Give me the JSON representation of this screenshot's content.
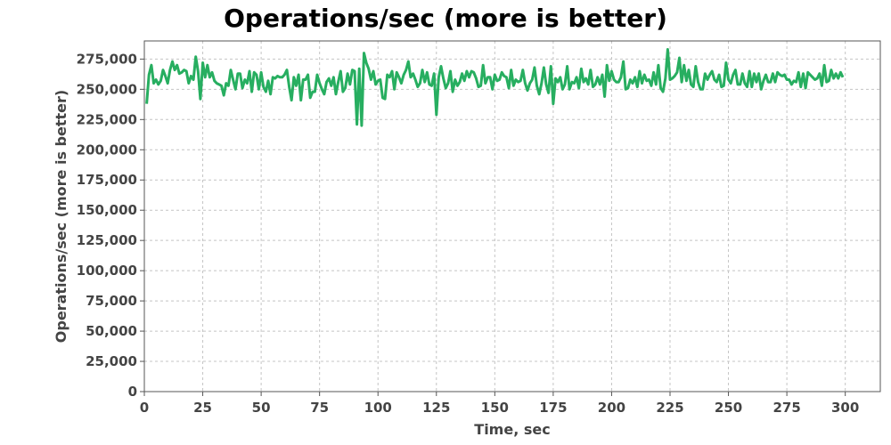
{
  "chart_data": {
    "type": "line",
    "title": "Operations/sec (more is better)",
    "xlabel": "Time, sec",
    "ylabel": "Operations/sec (more is better)",
    "xlim": [
      0,
      315
    ],
    "ylim": [
      0,
      290000
    ],
    "x_ticks": [
      0,
      25,
      50,
      75,
      100,
      125,
      150,
      175,
      200,
      225,
      250,
      275,
      300
    ],
    "y_ticks": [
      0,
      25000,
      50000,
      75000,
      100000,
      125000,
      150000,
      175000,
      200000,
      225000,
      250000,
      275000
    ],
    "y_tick_labels": [
      "0",
      "25,000",
      "50,000",
      "75,000",
      "100,000",
      "125,000",
      "150,000",
      "175,000",
      "200,000",
      "225,000",
      "250,000",
      "275,000"
    ],
    "grid": true,
    "series": [
      {
        "color": "#27ae60",
        "x": [
          1,
          2,
          3,
          4,
          5,
          6,
          7,
          8,
          9,
          10,
          11,
          12,
          13,
          14,
          15,
          16,
          17,
          18,
          19,
          20,
          21,
          22,
          23,
          24,
          25,
          26,
          27,
          28,
          29,
          30,
          31,
          32,
          33,
          34,
          35,
          36,
          37,
          38,
          39,
          40,
          41,
          42,
          43,
          44,
          45,
          46,
          47,
          48,
          49,
          50,
          51,
          52,
          53,
          54,
          55,
          56,
          57,
          58,
          59,
          60,
          61,
          62,
          63,
          64,
          65,
          66,
          67,
          68,
          69,
          70,
          71,
          72,
          73,
          74,
          75,
          76,
          77,
          78,
          79,
          80,
          81,
          82,
          83,
          84,
          85,
          86,
          87,
          88,
          89,
          90,
          91,
          92,
          93,
          94,
          95,
          96,
          97,
          98,
          99,
          100,
          101,
          102,
          103,
          104,
          105,
          106,
          107,
          108,
          109,
          110,
          111,
          112,
          113,
          114,
          115,
          116,
          117,
          118,
          119,
          120,
          121,
          122,
          123,
          124,
          125,
          126,
          127,
          128,
          129,
          130,
          131,
          132,
          133,
          134,
          135,
          136,
          137,
          138,
          139,
          140,
          141,
          142,
          143,
          144,
          145,
          146,
          147,
          148,
          149,
          150,
          151,
          152,
          153,
          154,
          155,
          156,
          157,
          158,
          159,
          160,
          161,
          162,
          163,
          164,
          165,
          166,
          167,
          168,
          169,
          170,
          171,
          172,
          173,
          174,
          175,
          176,
          177,
          178,
          179,
          180,
          181,
          182,
          183,
          184,
          185,
          186,
          187,
          188,
          189,
          190,
          191,
          192,
          193,
          194,
          195,
          196,
          197,
          198,
          199,
          200,
          201,
          202,
          203,
          204,
          205,
          206,
          207,
          208,
          209,
          210,
          211,
          212,
          213,
          214,
          215,
          216,
          217,
          218,
          219,
          220,
          221,
          222,
          223,
          224,
          225,
          226,
          227,
          228,
          229,
          230,
          231,
          232,
          233,
          234,
          235,
          236,
          237,
          238,
          239,
          240,
          241,
          242,
          243,
          244,
          245,
          246,
          247,
          248,
          249,
          250,
          251,
          252,
          253,
          254,
          255,
          256,
          257,
          258,
          259,
          260,
          261,
          262,
          263,
          264,
          265,
          266,
          267,
          268,
          269,
          270,
          271,
          272,
          273,
          274,
          275,
          276,
          277,
          278,
          279,
          280,
          281,
          282,
          283,
          284,
          285,
          286,
          287,
          288,
          289,
          290,
          291,
          292,
          293,
          294,
          295,
          296,
          297,
          298,
          299
        ],
        "y": [
          238000,
          262000,
          270000,
          255000,
          258000,
          254000,
          257000,
          266000,
          261000,
          255000,
          266000,
          273000,
          266000,
          270000,
          263000,
          264000,
          266000,
          265000,
          255000,
          261000,
          258000,
          277000,
          265000,
          242000,
          272000,
          260000,
          270000,
          260000,
          264000,
          257000,
          255000,
          254000,
          253000,
          245000,
          255000,
          253000,
          266000,
          258000,
          250000,
          263000,
          263000,
          251000,
          258000,
          255000,
          265000,
          248000,
          264000,
          262000,
          250000,
          264000,
          252000,
          248000,
          257000,
          246000,
          260000,
          259000,
          261000,
          260000,
          260000,
          262000,
          266000,
          252000,
          241000,
          260000,
          253000,
          262000,
          241000,
          258000,
          258000,
          262000,
          243000,
          248000,
          248000,
          262000,
          255000,
          250000,
          246000,
          256000,
          259000,
          253000,
          260000,
          246000,
          256000,
          265000,
          248000,
          251000,
          263000,
          254000,
          266000,
          265000,
          221000,
          267000,
          220000,
          280000,
          272000,
          267000,
          258000,
          265000,
          254000,
          257000,
          258000,
          243000,
          242000,
          262000,
          260000,
          265000,
          250000,
          264000,
          260000,
          255000,
          262000,
          266000,
          273000,
          260000,
          263000,
          258000,
          252000,
          255000,
          266000,
          256000,
          264000,
          254000,
          253000,
          263000,
          229000,
          260000,
          269000,
          259000,
          251000,
          255000,
          265000,
          248000,
          258000,
          253000,
          256000,
          263000,
          257000,
          265000,
          260000,
          265000,
          264000,
          259000,
          252000,
          253000,
          270000,
          255000,
          260000,
          260000,
          250000,
          262000,
          257000,
          258000,
          264000,
          261000,
          260000,
          251000,
          266000,
          253000,
          258000,
          256000,
          257000,
          266000,
          255000,
          249000,
          255000,
          258000,
          268000,
          253000,
          246000,
          255000,
          268000,
          254000,
          247000,
          269000,
          238000,
          259000,
          256000,
          260000,
          250000,
          254000,
          269000,
          250000,
          256000,
          255000,
          260000,
          251000,
          267000,
          256000,
          259000,
          254000,
          266000,
          252000,
          254000,
          260000,
          254000,
          262000,
          244000,
          270000,
          257000,
          265000,
          258000,
          256000,
          256000,
          260000,
          273000,
          250000,
          251000,
          258000,
          255000,
          260000,
          252000,
          265000,
          255000,
          262000,
          257000,
          258000,
          253000,
          264000,
          254000,
          270000,
          251000,
          248000,
          259000,
          283000,
          258000,
          259000,
          261000,
          264000,
          276000,
          256000,
          270000,
          257000,
          266000,
          254000,
          252000,
          269000,
          256000,
          250000,
          250000,
          263000,
          258000,
          262000,
          265000,
          258000,
          256000,
          262000,
          252000,
          253000,
          272000,
          258000,
          255000,
          262000,
          266000,
          254000,
          254000,
          263000,
          255000,
          252000,
          265000,
          252000,
          263000,
          256000,
          263000,
          250000,
          257000,
          262000,
          256000,
          256000,
          263000,
          256000,
          264000,
          262000,
          261000,
          262000,
          258000,
          258000,
          254000,
          257000,
          256000,
          264000,
          252000,
          263000,
          251000,
          264000,
          262000,
          260000,
          258000,
          259000,
          263000,
          253000,
          270000,
          256000,
          257000,
          266000,
          259000,
          263000,
          259000,
          264000,
          260000
        ]
      }
    ]
  }
}
